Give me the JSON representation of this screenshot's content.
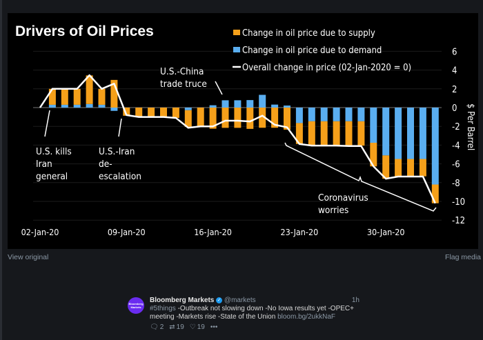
{
  "chart_data": {
    "type": "bar",
    "title": "Drivers of Oil Prices",
    "ylabel": "$ Per Barrel",
    "ylim": [
      -12,
      6
    ],
    "yticks": [
      "6",
      "4",
      "2",
      "0",
      "-2",
      "-4",
      "-6",
      "-8",
      "-10",
      "-12"
    ],
    "xticks": [
      "02-Jan-20",
      "09-Jan-20",
      "16-Jan-20",
      "23-Jan-20",
      "30-Jan-20"
    ],
    "stacked": true,
    "grid": true,
    "legend_position": "top-right",
    "colors": {
      "supply": "#f5a01a",
      "demand": "#5aaef0",
      "overall": "#ffffff",
      "background": "#000000"
    },
    "series": [
      {
        "name": "Change in oil price due to supply",
        "kind": "bar",
        "values": [
          1.7,
          1.7,
          1.7,
          3.05,
          1.7,
          2.95,
          -0.87,
          -1.0,
          -1.0,
          -1.0,
          -1.1,
          -1.77,
          -2.0,
          -2.25,
          -2.16,
          -2.16,
          -2.27,
          -2.15,
          -2.15,
          -2.35,
          -2.23,
          -2.6,
          -2.6,
          -2.6,
          -2.6,
          -2.6,
          -2.52,
          -2.48,
          -1.85,
          -1.85,
          -1.85,
          -2.0
        ]
      },
      {
        "name": "Change in oil price due to demand",
        "kind": "bar",
        "values": [
          0.3,
          0.3,
          0.3,
          0.38,
          0.3,
          -0.35,
          0,
          0,
          0,
          0,
          0,
          -0.28,
          0,
          0.25,
          0.78,
          0.78,
          0.8,
          1.36,
          0.32,
          0.22,
          -1.65,
          -1.46,
          -1.46,
          -1.46,
          -1.46,
          -1.46,
          -3.75,
          -5.1,
          -5.48,
          -5.48,
          -5.48,
          -8.2
        ]
      },
      {
        "name": "Overall change in price (02-Jan-2020 = 0)",
        "kind": "line",
        "values": [
          0,
          2.0,
          2.0,
          2.0,
          3.45,
          2.0,
          2.55,
          -0.8,
          -1.0,
          -1.0,
          -1.0,
          -1.1,
          -2.15,
          -2.0,
          -2.0,
          -1.4,
          -1.4,
          -1.48,
          -0.86,
          -1.83,
          -2.1,
          -3.88,
          -4.05,
          -4.05,
          -4.05,
          -4.1,
          -4.1,
          -6.27,
          -7.58,
          -7.35,
          -7.35,
          -7.35,
          -10.2
        ]
      }
    ],
    "x_start": "02-Jan-20",
    "annotations": [
      {
        "id": "kills",
        "text": [
          "U.S. kills",
          "Iran",
          "general"
        ]
      },
      {
        "id": "deesc",
        "text": [
          "U.S.-Iran",
          "de-",
          "escalation"
        ]
      },
      {
        "id": "truce",
        "text": [
          "U.S.-China",
          "trade truce"
        ]
      },
      {
        "id": "corona",
        "text": [
          "Coronavirus",
          "worries"
        ]
      }
    ]
  },
  "media_links": {
    "view_original": "View original",
    "flag_media": "Flag media"
  },
  "tweet": {
    "avatar_text": "Bloomberg Markets",
    "name": "Bloomberg Markets",
    "handle": "@markets",
    "time": "1h",
    "hashtag": "#5things",
    "text": " -Outbreak not slowing down -No Iowa results yet -OPEC+ meeting -Markets rise -State of the Union ",
    "link": "bloom.bg/2ukkNaF",
    "replies": "2",
    "retweets": "19",
    "likes": "19"
  }
}
